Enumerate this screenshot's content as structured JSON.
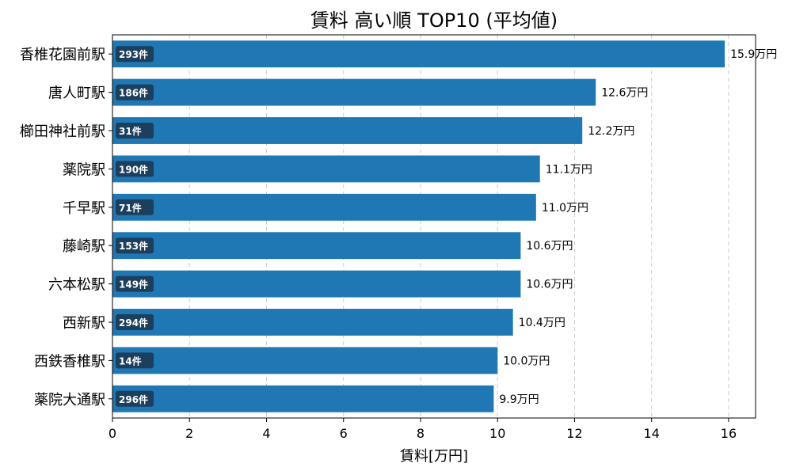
{
  "chart_data": {
    "type": "bar",
    "orientation": "horizontal",
    "title": "賃料 高い順 TOP10 (平均値)",
    "xlabel": "賃料[万円]",
    "ylabel": "",
    "xlim": [
      0,
      16.7
    ],
    "xticks": [
      0,
      2,
      4,
      6,
      8,
      10,
      12,
      14,
      16
    ],
    "grid": "vertical dashed",
    "bar_color": "#1f77b4",
    "badge_color": "#1c3f5e",
    "categories": [
      "香椎花園前駅",
      "唐人町駅",
      "櫛田神社前駅",
      "薬院駅",
      "千早駅",
      "藤崎駅",
      "六本松駅",
      "西新駅",
      "西鉄香椎駅",
      "薬院大通駅"
    ],
    "values": [
      15.9,
      12.55,
      12.2,
      11.1,
      11.0,
      10.6,
      10.6,
      10.4,
      10.0,
      9.9
    ],
    "value_labels": [
      "15.9万円",
      "12.6万円",
      "12.2万円",
      "11.1万円",
      "11.0万円",
      "10.6万円",
      "10.6万円",
      "10.4万円",
      "10.0万円",
      "9.9万円"
    ],
    "counts": [
      "293件",
      "186件",
      "31件",
      "190件",
      "71件",
      "153件",
      "149件",
      "294件",
      "14件",
      "296件"
    ]
  }
}
